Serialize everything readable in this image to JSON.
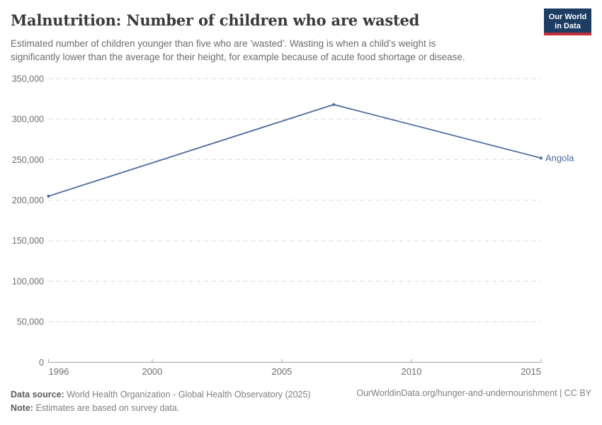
{
  "header": {
    "title": "Malnutrition: Number of children who are wasted",
    "subtitle_lines": [
      "Estimated number of children younger than five who are 'wasted'. Wasting is when a child’s weight is",
      "significantly lower than the average for their height, for example because of acute food shortage or disease."
    ],
    "logo": {
      "line1": "Our World",
      "line2": "in Data"
    }
  },
  "chart_data": {
    "type": "line",
    "title": "Malnutrition: Number of children who are wasted",
    "x": [
      1996,
      2007,
      2015
    ],
    "series": [
      {
        "name": "Angola",
        "values": [
          205000,
          318000,
          252000
        ],
        "color": "#4C6A9C"
      }
    ],
    "xlabel": "",
    "ylabel": "",
    "xlim": [
      1996,
      2015
    ],
    "ylim": [
      0,
      350000
    ],
    "x_ticks": [
      1996,
      2000,
      2005,
      2010,
      2015
    ],
    "y_ticks": [
      0,
      50000,
      100000,
      150000,
      200000,
      250000,
      300000,
      350000
    ],
    "y_tick_labels": [
      "0",
      "50,000",
      "100,000",
      "150,000",
      "200,000",
      "250,000",
      "300,000",
      "350,000"
    ],
    "grid": "horizontal-dashed",
    "legend_position": "end-of-line-label"
  },
  "colors": {
    "line": "#4C6A9C",
    "grid": "#dcdcdc",
    "axis": "#a3a3a3",
    "tick_text": "#6e6e6e",
    "logo_navy": "#1d3d63",
    "logo_red": "#c2303e"
  },
  "footer": {
    "source_label": "Data source:",
    "source_text": "World Health Organization - Global Health Observatory (2025)",
    "note_label": "Note:",
    "note_text": "Estimates are based on survey data.",
    "link_text": "OurWorldinData.org/hunger-and-undernourishment | CC BY"
  }
}
